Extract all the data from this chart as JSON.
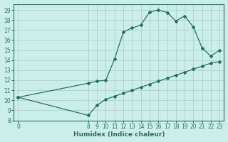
{
  "xlabel": "Humidex (Indice chaleur)",
  "bg_color": "#cceee8",
  "grid_color": "#aad8d0",
  "line_color": "#2a6e6a",
  "xlim": [
    -0.5,
    23.5
  ],
  "ylim": [
    8,
    19.6
  ],
  "curve1_x": [
    0,
    8,
    9,
    10,
    11,
    12,
    13,
    14,
    15,
    16,
    17,
    18,
    19,
    20,
    21,
    22,
    23
  ],
  "curve1_y": [
    10.3,
    11.7,
    11.9,
    12.0,
    14.1,
    16.8,
    17.2,
    17.5,
    18.8,
    19.0,
    18.75,
    17.9,
    18.4,
    17.3,
    15.2,
    14.4,
    15.0
  ],
  "curve2_x": [
    0,
    8,
    9,
    10,
    11,
    12,
    13,
    14,
    15,
    16,
    17,
    18,
    19,
    20,
    21,
    22,
    23
  ],
  "curve2_y": [
    10.3,
    8.5,
    9.5,
    10.1,
    10.4,
    10.7,
    11.0,
    11.3,
    11.6,
    11.9,
    12.2,
    12.5,
    12.8,
    13.1,
    13.4,
    13.7,
    13.85
  ],
  "x_ticks": [
    0,
    8,
    9,
    10,
    11,
    12,
    13,
    14,
    15,
    16,
    17,
    18,
    19,
    20,
    21,
    22,
    23
  ],
  "y_ticks": [
    8,
    9,
    10,
    11,
    12,
    13,
    14,
    15,
    16,
    17,
    18,
    19
  ]
}
